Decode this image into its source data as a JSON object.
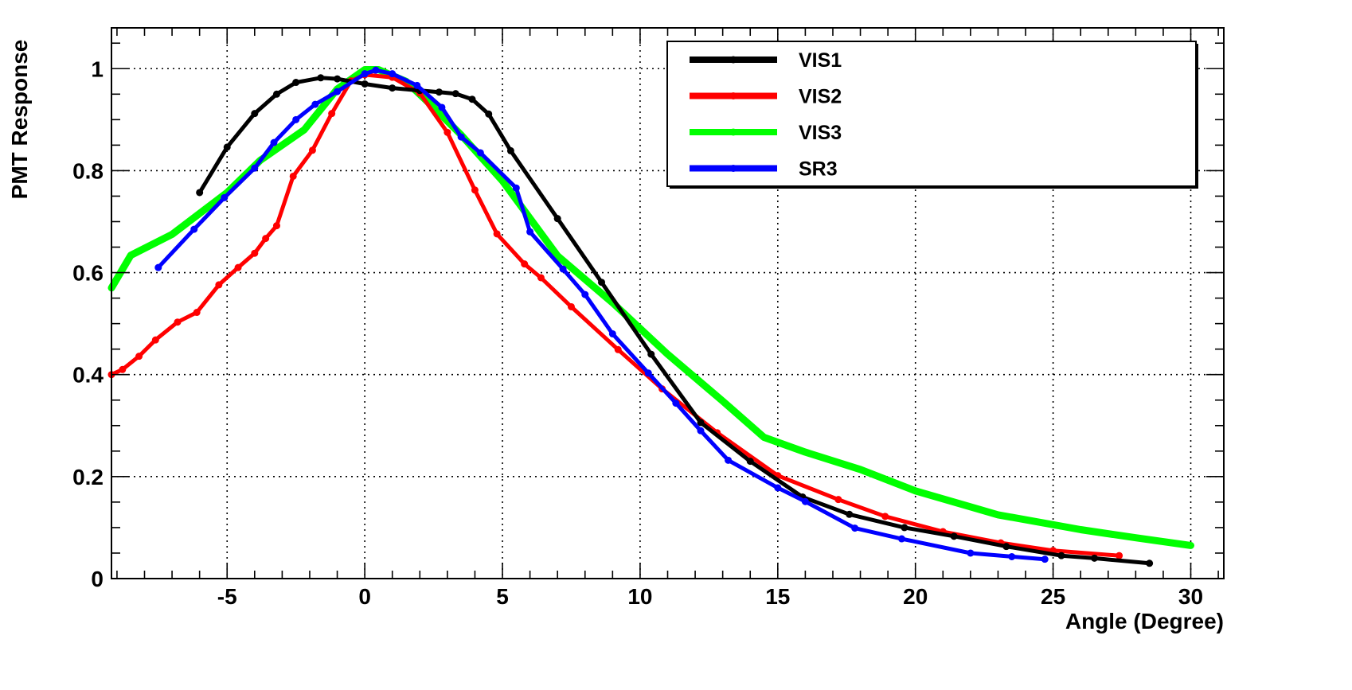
{
  "chart_data": {
    "type": "line",
    "title": "",
    "xlabel": "Angle (Degree)",
    "ylabel": "PMT Response",
    "xlim": [
      -9.2,
      31.2
    ],
    "ylim": [
      0,
      1.08
    ],
    "xticks": [
      -5,
      0,
      5,
      10,
      15,
      20,
      25,
      30
    ],
    "xtick_labels": [
      "-5",
      "0",
      "5",
      "10",
      "15",
      "20",
      "25",
      "30"
    ],
    "yticks": [
      0,
      0.2,
      0.4,
      0.6,
      0.8,
      1
    ],
    "ytick_labels": [
      "0",
      "0.2",
      "0.4",
      "0.6",
      "0.8",
      "1"
    ],
    "grid": true,
    "legend_position": "top-right",
    "series": [
      {
        "name": "VIS1",
        "color": "#000000",
        "x": [
          -6.0,
          -5.0,
          -4.0,
          -3.2,
          -2.5,
          -1.6,
          -1.0,
          0.0,
          1.0,
          2.0,
          2.7,
          3.3,
          3.9,
          4.5,
          5.3,
          7.0,
          8.6,
          10.4,
          12.2,
          14.0,
          15.9,
          17.6,
          19.6,
          21.4,
          23.3,
          25.3,
          26.5,
          28.5
        ],
        "y": [
          0.757,
          0.846,
          0.912,
          0.95,
          0.973,
          0.982,
          0.98,
          0.97,
          0.962,
          0.957,
          0.954,
          0.951,
          0.94,
          0.911,
          0.839,
          0.706,
          0.581,
          0.44,
          0.306,
          0.23,
          0.16,
          0.126,
          0.1,
          0.083,
          0.063,
          0.045,
          0.04,
          0.03
        ],
        "markers": true
      },
      {
        "name": "VIS2",
        "color": "#ff0000",
        "x": [
          -9.2,
          -8.8,
          -8.2,
          -7.6,
          -6.8,
          -6.1,
          -5.3,
          -4.6,
          -4.0,
          -3.6,
          -3.2,
          -2.6,
          -1.9,
          -1.2,
          -0.5,
          0.0,
          1.0,
          2.0,
          3.0,
          4.0,
          4.8,
          5.8,
          6.4,
          7.5,
          9.2,
          10.8,
          12.8,
          15.0,
          17.2,
          18.9,
          21.0,
          23.1,
          25.0,
          27.4
        ],
        "y": [
          0.4,
          0.41,
          0.436,
          0.468,
          0.503,
          0.522,
          0.576,
          0.61,
          0.638,
          0.667,
          0.692,
          0.789,
          0.84,
          0.912,
          0.976,
          0.988,
          0.983,
          0.952,
          0.875,
          0.762,
          0.676,
          0.617,
          0.59,
          0.533,
          0.449,
          0.372,
          0.286,
          0.202,
          0.155,
          0.122,
          0.092,
          0.07,
          0.055,
          0.045
        ],
        "markers": true
      },
      {
        "name": "VIS3",
        "color": "#00ff00",
        "x": [
          -9.2,
          -8.5,
          -7.0,
          -5.0,
          -3.8,
          -2.2,
          -1.0,
          0.0,
          0.5,
          1.5,
          2.5,
          3.5,
          5.0,
          7.0,
          9.0,
          11.0,
          13.0,
          14.5,
          16.0,
          18.0,
          20.0,
          23.0,
          26.0,
          28.0,
          30.0
        ],
        "y": [
          0.57,
          0.634,
          0.675,
          0.757,
          0.82,
          0.88,
          0.96,
          0.998,
          0.998,
          0.975,
          0.924,
          0.87,
          0.78,
          0.633,
          0.541,
          0.44,
          0.348,
          0.277,
          0.248,
          0.214,
          0.172,
          0.125,
          0.096,
          0.08,
          0.065
        ],
        "markers": false
      },
      {
        "name": "SR3",
        "color": "#0000ff",
        "x": [
          -7.5,
          -6.2,
          -5.1,
          -4.0,
          -3.3,
          -2.5,
          -1.8,
          -1.0,
          0.0,
          0.4,
          1.0,
          1.9,
          2.8,
          3.5,
          4.2,
          5.5,
          6.0,
          7.2,
          8.0,
          9.0,
          10.3,
          11.3,
          12.2,
          13.2,
          15.0,
          16.0,
          17.8,
          19.5,
          22.0,
          23.5,
          24.7
        ],
        "y": [
          0.61,
          0.685,
          0.747,
          0.805,
          0.855,
          0.9,
          0.93,
          0.955,
          0.99,
          0.997,
          0.99,
          0.967,
          0.924,
          0.866,
          0.835,
          0.766,
          0.68,
          0.607,
          0.557,
          0.48,
          0.403,
          0.344,
          0.29,
          0.232,
          0.178,
          0.151,
          0.099,
          0.078,
          0.05,
          0.043,
          0.038
        ],
        "markers": true
      }
    ]
  }
}
